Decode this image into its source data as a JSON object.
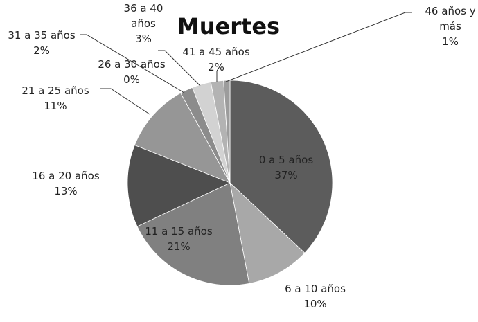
{
  "chart_data": {
    "type": "pie",
    "title": "Muertes",
    "categories": [
      "0 a 5 años",
      "6 a 10 años",
      "11 a 15 años",
      "16 a 20 años",
      "21 a 25 años",
      "26 a 30 años",
      "31 a 35 años",
      "36 a 40 años",
      "41 a 45 años",
      "46 años y más"
    ],
    "values": [
      37,
      10,
      21,
      13,
      11,
      0,
      2,
      3,
      2,
      1
    ],
    "value_labels": [
      "37%",
      "10%",
      "21%",
      "13%",
      "11%",
      "0%",
      "2%",
      "3%",
      "2%",
      "1%"
    ],
    "colors": [
      "#5c5c5c",
      "#a8a8a8",
      "#808080",
      "#4e4e4e",
      "#969696",
      "#6e6e6e",
      "#8c8c8c",
      "#d2d2d2",
      "#b3b3b3",
      "#9c9c9c"
    ]
  }
}
